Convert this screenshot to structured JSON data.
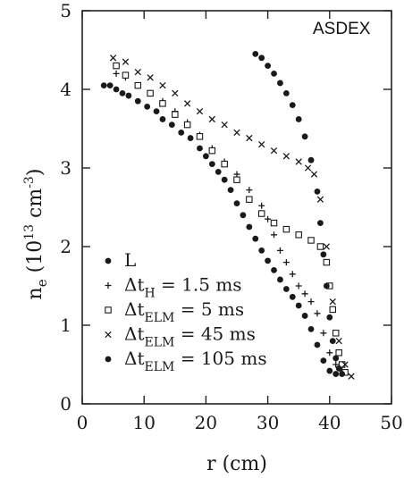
{
  "chart_data": {
    "type": "scatter",
    "annotation": "ASDEX",
    "xlabel": "r (cm)",
    "ylabel_parts": {
      "base": "n",
      "sub": "e",
      "open": " (10",
      "exp13": "13",
      "unit": " cm",
      "expm3": "-3",
      "close": ")"
    },
    "xlim": [
      0,
      50
    ],
    "ylim": [
      0,
      5
    ],
    "xticks": [
      0,
      10,
      20,
      30,
      40,
      50
    ],
    "yticks": [
      0,
      1,
      2,
      3,
      4,
      5
    ],
    "colors": {
      "ink": "#1a1a1a",
      "frame": "#222222"
    },
    "series": [
      {
        "key": "L",
        "marker": "dot",
        "legend": {
          "main": "L"
        },
        "points": [
          [
            3.5,
            4.05
          ],
          [
            4.5,
            4.05
          ],
          [
            5.5,
            4.0
          ],
          [
            6.5,
            3.95
          ],
          [
            7.5,
            3.92
          ],
          [
            9,
            3.85
          ],
          [
            10.5,
            3.78
          ],
          [
            12,
            3.72
          ],
          [
            13,
            3.62
          ],
          [
            14.5,
            3.55
          ],
          [
            16,
            3.45
          ],
          [
            17.5,
            3.38
          ],
          [
            19,
            3.25
          ],
          [
            20,
            3.15
          ],
          [
            21,
            3.05
          ],
          [
            22,
            2.95
          ],
          [
            23,
            2.85
          ],
          [
            24,
            2.72
          ],
          [
            25,
            2.55
          ],
          [
            26,
            2.4
          ],
          [
            27,
            2.25
          ],
          [
            28,
            2.1
          ],
          [
            29,
            1.95
          ],
          [
            30,
            1.82
          ],
          [
            31,
            1.7
          ],
          [
            32,
            1.58
          ],
          [
            33,
            1.46
          ],
          [
            34,
            1.36
          ],
          [
            35,
            1.25
          ],
          [
            36,
            1.12
          ],
          [
            37,
            0.95
          ],
          [
            38,
            0.75
          ],
          [
            39,
            0.55
          ],
          [
            40,
            0.42
          ],
          [
            41,
            0.38
          ]
        ]
      },
      {
        "key": "H",
        "marker": "plus",
        "legend": {
          "pre": "Δt",
          "sub": "H",
          "post": " = 1.5 ms"
        },
        "points": [
          [
            5.5,
            4.2
          ],
          [
            7,
            4.15
          ],
          [
            9,
            4.05
          ],
          [
            11,
            3.95
          ],
          [
            13,
            3.85
          ],
          [
            15,
            3.72
          ],
          [
            17,
            3.58
          ],
          [
            19,
            3.42
          ],
          [
            21,
            3.25
          ],
          [
            23,
            3.08
          ],
          [
            25,
            2.92
          ],
          [
            27,
            2.72
          ],
          [
            29,
            2.52
          ],
          [
            30,
            2.35
          ],
          [
            31,
            2.15
          ],
          [
            32,
            1.95
          ],
          [
            33,
            1.8
          ],
          [
            34,
            1.65
          ],
          [
            35,
            1.5
          ],
          [
            36,
            1.4
          ],
          [
            37,
            1.3
          ],
          [
            38,
            1.15
          ],
          [
            39,
            0.9
          ],
          [
            40,
            0.65
          ],
          [
            41,
            0.5
          ],
          [
            42,
            0.42
          ]
        ]
      },
      {
        "key": "ELM5",
        "marker": "square",
        "legend": {
          "pre": "Δt",
          "sub": "ELM",
          "post": " = 5 ms"
        },
        "points": [
          [
            5.5,
            4.3
          ],
          [
            7,
            4.18
          ],
          [
            9,
            4.05
          ],
          [
            11,
            3.95
          ],
          [
            13,
            3.82
          ],
          [
            15,
            3.68
          ],
          [
            17,
            3.55
          ],
          [
            19,
            3.4
          ],
          [
            21,
            3.22
          ],
          [
            23,
            3.05
          ],
          [
            25,
            2.85
          ],
          [
            27,
            2.6
          ],
          [
            29,
            2.42
          ],
          [
            31,
            2.3
          ],
          [
            33,
            2.22
          ],
          [
            35,
            2.15
          ],
          [
            37,
            2.08
          ],
          [
            38.5,
            2.0
          ],
          [
            39.5,
            1.8
          ],
          [
            40,
            1.5
          ],
          [
            40.5,
            1.2
          ],
          [
            41,
            0.9
          ],
          [
            41.5,
            0.65
          ],
          [
            42,
            0.5
          ],
          [
            42.5,
            0.4
          ]
        ]
      },
      {
        "key": "ELM45",
        "marker": "cross",
        "legend": {
          "pre": "Δt",
          "sub": "ELM",
          "post": " = 45 ms"
        },
        "points": [
          [
            5,
            4.4
          ],
          [
            7,
            4.35
          ],
          [
            9,
            4.22
          ],
          [
            11,
            4.15
          ],
          [
            13,
            4.05
          ],
          [
            15,
            3.95
          ],
          [
            17,
            3.82
          ],
          [
            19,
            3.72
          ],
          [
            21,
            3.62
          ],
          [
            23,
            3.55
          ],
          [
            25,
            3.45
          ],
          [
            27,
            3.38
          ],
          [
            29,
            3.3
          ],
          [
            31,
            3.22
          ],
          [
            33,
            3.15
          ],
          [
            35,
            3.08
          ],
          [
            36.5,
            3.0
          ],
          [
            37.5,
            2.92
          ],
          [
            38.5,
            2.6
          ],
          [
            39.5,
            2.0
          ],
          [
            40.5,
            1.3
          ],
          [
            41.5,
            0.8
          ],
          [
            42.5,
            0.5
          ],
          [
            43.5,
            0.35
          ]
        ]
      },
      {
        "key": "ELM105",
        "marker": "dot",
        "legend": {
          "pre": "Δt",
          "sub": "ELM",
          "post": " = 105 ms"
        },
        "points": [
          [
            28,
            4.45
          ],
          [
            29,
            4.4
          ],
          [
            30,
            4.3
          ],
          [
            31,
            4.2
          ],
          [
            32,
            4.08
          ],
          [
            33,
            3.95
          ],
          [
            34,
            3.8
          ],
          [
            35,
            3.62
          ],
          [
            36,
            3.4
          ],
          [
            37,
            3.1
          ],
          [
            38,
            2.7
          ],
          [
            38.5,
            2.3
          ],
          [
            39,
            1.9
          ],
          [
            39.5,
            1.5
          ],
          [
            40,
            1.1
          ],
          [
            40.5,
            0.8
          ],
          [
            41,
            0.58
          ],
          [
            41.5,
            0.45
          ],
          [
            42,
            0.38
          ]
        ]
      }
    ]
  }
}
